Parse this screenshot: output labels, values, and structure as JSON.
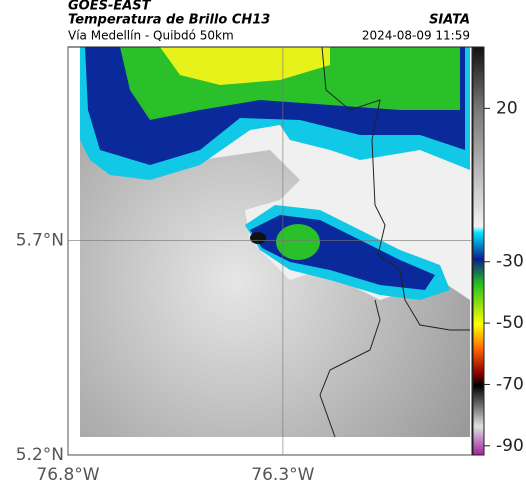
{
  "header": {
    "title": "GOES-EAST",
    "subtitle": "Temperatura de Brillo CH13",
    "source": "SIATA",
    "route": "Vía Medellín - Quibdó 50km",
    "timestamp": "2024-08-09 11:59"
  },
  "map": {
    "lonlim": [
      -76.8,
      -75.86
    ],
    "latlim": [
      5.2,
      6.15
    ],
    "lat_ticks": [
      {
        "value": 5.7,
        "label": "5.7°N"
      },
      {
        "value": 5.2,
        "label": "5.2°N"
      }
    ],
    "lon_ticks": [
      {
        "value": -76.8,
        "label": "76.8°W"
      },
      {
        "value": -76.3,
        "label": "76.3°W"
      }
    ]
  },
  "colorbar": {
    "lim": [
      -93,
      40
    ],
    "ticks": [
      20,
      -30,
      -50,
      -70,
      -90
    ]
  }
}
